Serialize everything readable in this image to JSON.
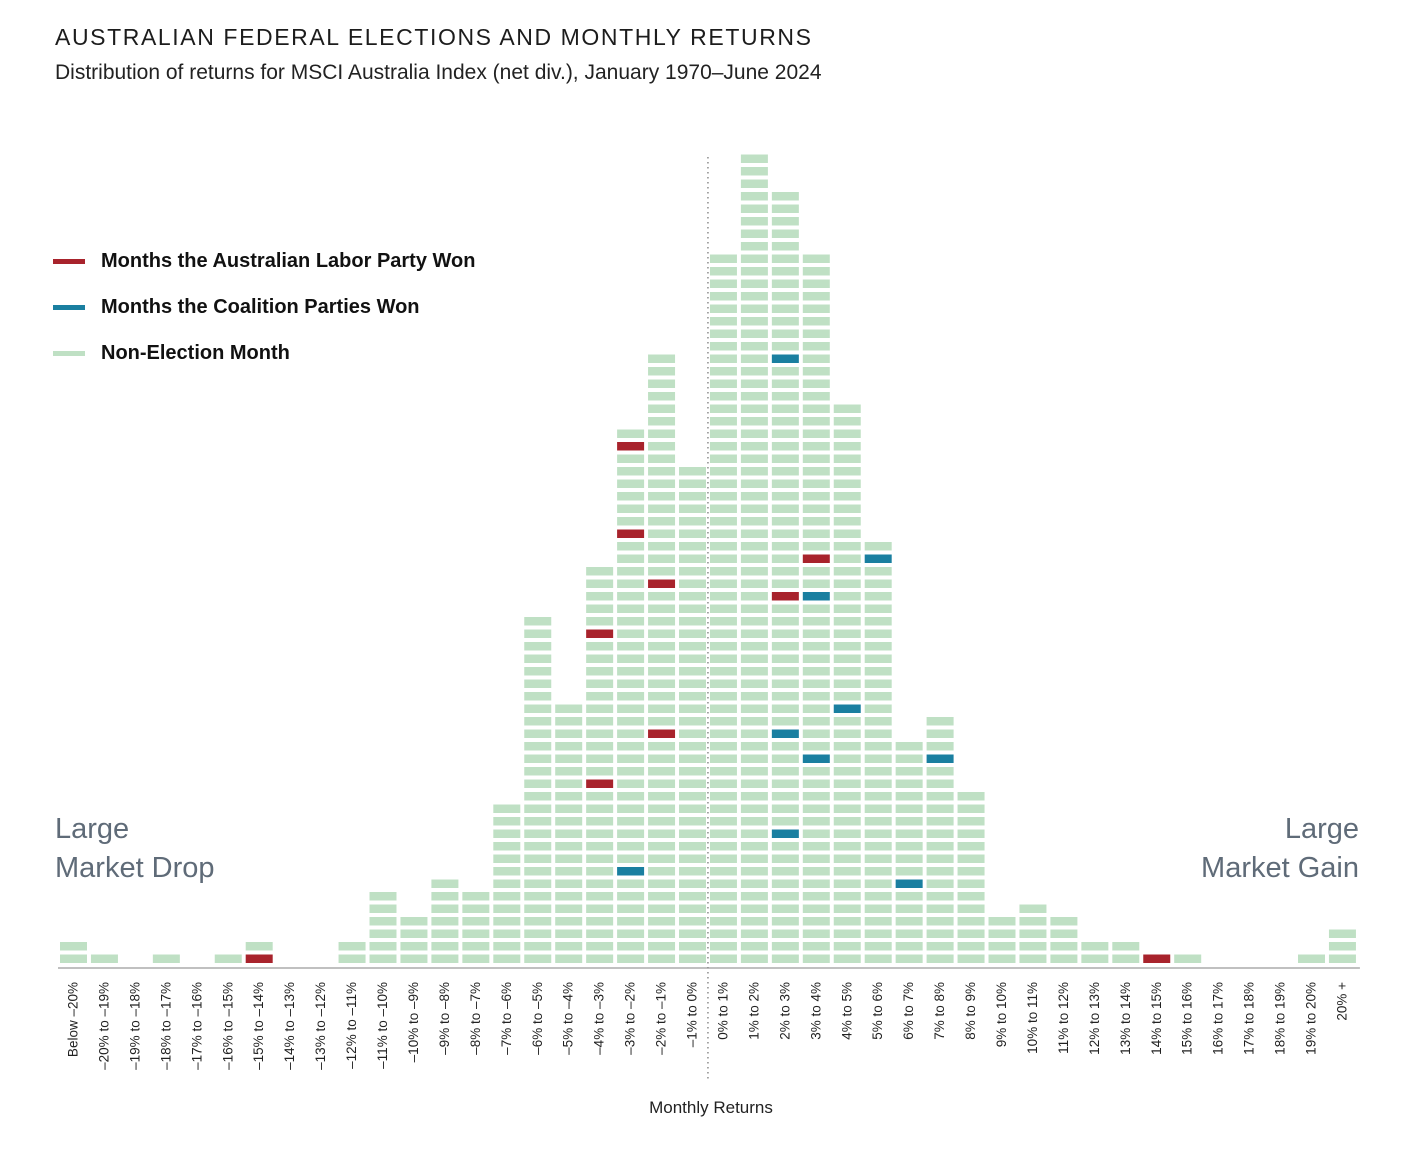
{
  "header": {
    "title": "AUSTRALIAN FEDERAL ELECTIONS AND MONTHLY RETURNS",
    "subtitle": "Distribution of returns for MSCI Australia Index (net div.), January 1970–June 2024"
  },
  "legend": {
    "items": [
      {
        "label": "Months the Australian Labor Party Won",
        "color": "#a8232c"
      },
      {
        "label": "Months the Coalition Parties Won",
        "color": "#1a7fa0"
      },
      {
        "label": "Non-Election Month",
        "color": "#bfe0c4"
      }
    ]
  },
  "annotations": {
    "left_line1": "Large",
    "left_line2": "Market Drop",
    "right_line1": "Large",
    "right_line2": "Market Gain"
  },
  "chart_data": {
    "type": "bar",
    "title": "AUSTRALIAN FEDERAL ELECTIONS AND MONTHLY RETURNS",
    "subtitle": "Distribution of returns for MSCI Australia Index (net div.), January 1970–June 2024",
    "xlabel": "Monthly Returns",
    "ylabel": "",
    "unit": "months (each block = one month)",
    "categories": [
      "Below –20%",
      "–20% to –19%",
      "–19% to –18%",
      "–18% to –17%",
      "–17% to –16%",
      "–16% to –15%",
      "–15% to –14%",
      "–14% to –13%",
      "–13% to –12%",
      "–12% to –11%",
      "–11% to –10%",
      "–10% to –9%",
      "–9% to –8%",
      "–8% to –7%",
      "–7% to –6%",
      "–6% to –5%",
      "–5% to –4%",
      "–4% to –3%",
      "–3% to –2%",
      "–2% to –1%",
      "–1% to 0%",
      "0% to 1%",
      "1% to 2%",
      "2% to 3%",
      "3% to 4%",
      "4% to 5%",
      "5% to 6%",
      "6% to 7%",
      "7% to 8%",
      "8% to 9%",
      "9% to 10%",
      "10% to 11%",
      "11% to 12%",
      "12% to 13%",
      "13% to 14%",
      "14% to 15%",
      "15% to 16%",
      "16% to 17%",
      "17% to 18%",
      "18% to 19%",
      "19% to 20%",
      "20% +"
    ],
    "values": [
      2,
      1,
      0,
      1,
      0,
      1,
      2,
      0,
      0,
      2,
      6,
      4,
      7,
      6,
      13,
      28,
      21,
      32,
      43,
      49,
      40,
      57,
      65,
      62,
      57,
      45,
      34,
      18,
      20,
      14,
      4,
      5,
      4,
      2,
      2,
      1,
      1,
      0,
      0,
      0,
      1,
      3
    ],
    "labor_win_rows": {
      "6": [
        1
      ],
      "17": [
        15,
        27
      ],
      "18": [
        35,
        42
      ],
      "19": [
        19,
        31
      ],
      "23": [
        30
      ],
      "24": [
        33
      ],
      "35": [
        1
      ]
    },
    "coalition_win_rows": {
      "18": [
        8
      ],
      "23": [
        11,
        19,
        49
      ],
      "24": [
        17,
        30
      ],
      "25": [
        21
      ],
      "26": [
        33
      ],
      "27": [
        7
      ],
      "28": [
        17
      ]
    },
    "zero_marker_after": "–1% to 0%",
    "legend_position": "top-left"
  }
}
